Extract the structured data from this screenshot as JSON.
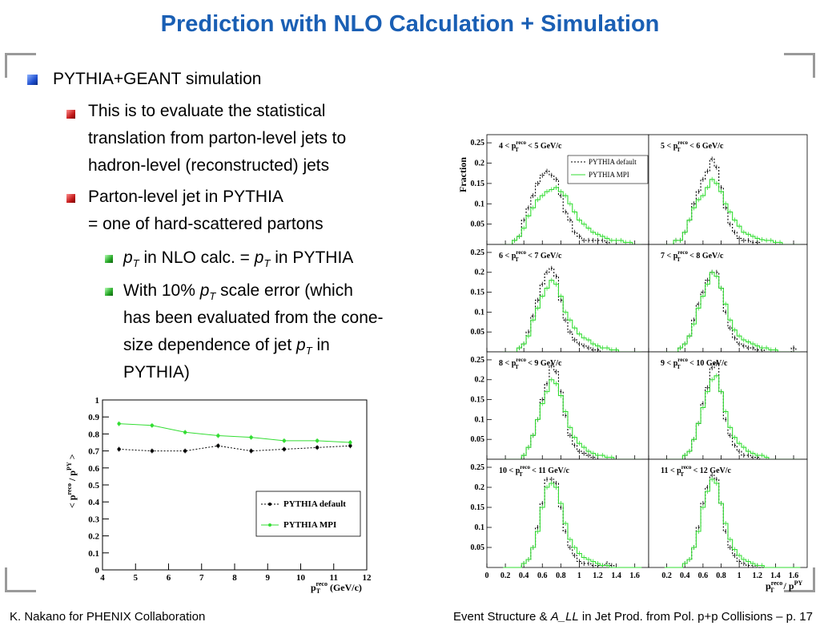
{
  "slide": {
    "title": "Prediction with NLO Calculation + Simulation",
    "bullets": {
      "b1": "PYTHIA+GEANT simulation",
      "b2_lines": [
        "This is to evaluate the statistical",
        "translation from parton-level jets to",
        "hadron-level (reconstructed) jets"
      ],
      "b3_lines": [
        "Parton-level jet in PYTHIA",
        "= one of hard-scattered partons"
      ],
      "b4": {
        "pre": "p",
        "sub": "T",
        "mid": " in NLO calc. = ",
        "pre2": "p",
        "sub2": "T",
        "post": " in PYTHIA"
      },
      "b5": {
        "line1a": "With 10% ",
        "p": "p",
        "sub": "T",
        "line1b": " scale error (which",
        "line2": "has been evaluated from the cone-",
        "line3a": "size dependence of jet ",
        "p3": "p",
        "sub3": "T",
        "line3b": " in",
        "line4": "PYTHIA)"
      }
    },
    "footer": {
      "left": "K. Nakano for PHENIX Collaboration",
      "right_pre": "Event Structure & ",
      "right_ital": "A_LL",
      "right_post": " in Jet Prod. from Pol. p+p Collisions – p. 17"
    }
  },
  "colors": {
    "title": "#1a5fb4",
    "mpi": "#33dd33",
    "default": "#000000"
  },
  "chart_data": [
    {
      "type": "line",
      "ylabel_main": "< p",
      "ylabel_sup1": "reco",
      "ylabel_mid": " / p",
      "ylabel_sup2": "PY",
      "ylabel_sub": "T",
      "ylabel_end": " >",
      "xlabel_main": "p",
      "xlabel_sub": "T",
      "xlabel_sup": "reco",
      "xlabel_unit": " (GeV/c)",
      "xlim": [
        4,
        12
      ],
      "ylim": [
        0,
        1
      ],
      "xticks": [
        4,
        5,
        6,
        7,
        8,
        9,
        10,
        11,
        12
      ],
      "yticks": [
        0,
        0.1,
        0.2,
        0.3,
        0.4,
        0.5,
        0.6,
        0.7,
        0.8,
        0.9,
        1
      ],
      "legend_position": "bottom-right",
      "x": [
        4.5,
        5.5,
        6.5,
        7.5,
        8.5,
        9.5,
        10.5,
        11.5
      ],
      "series": [
        {
          "name": "PYTHIA default",
          "values": [
            0.71,
            0.7,
            0.7,
            0.73,
            0.7,
            0.71,
            0.72,
            0.73
          ]
        },
        {
          "name": "PYTHIA MPI",
          "values": [
            0.86,
            0.85,
            0.81,
            0.79,
            0.78,
            0.76,
            0.76,
            0.75
          ]
        }
      ]
    },
    {
      "type": "bar",
      "ylabel": "Fraction",
      "xlabel_main": "p",
      "xlabel_sup1": "reco",
      "xlabel_sub": "T",
      "xlabel_mid": " / p",
      "xlabel_sup2": "PY",
      "ylim": [
        0,
        0.27
      ],
      "yticks": [
        0.05,
        0.1,
        0.15,
        0.2,
        0.25
      ],
      "xticks_left": [
        "0",
        "0.2",
        "0.4",
        "0.6",
        "0.8",
        "1",
        "1.2",
        "1.4",
        "1.6"
      ],
      "xticks_right": [
        "0.2",
        "0.4",
        "0.6",
        "0.8",
        "1",
        "1.2",
        "1.4",
        "1.6"
      ],
      "bins": [
        0.2,
        0.25,
        0.3,
        0.35,
        0.4,
        0.45,
        0.5,
        0.55,
        0.6,
        0.65,
        0.7,
        0.75,
        0.8,
        0.85,
        0.9,
        0.95,
        1.0,
        1.05,
        1.1,
        1.15,
        1.2,
        1.25,
        1.3,
        1.35,
        1.4,
        1.45,
        1.5,
        1.55,
        1.6,
        1.65
      ],
      "legend": [
        "PYTHIA default",
        "PYTHIA MPI"
      ],
      "panels": [
        {
          "label_pre": "4 < p",
          "label_post": " < 5 GeV/c",
          "default": [
            0,
            0,
            0.01,
            0.02,
            0.06,
            0.09,
            0.12,
            0.15,
            0.17,
            0.18,
            0.17,
            0.16,
            0.12,
            0.08,
            0.06,
            0.03,
            0.02,
            0.01,
            0.01,
            0.01,
            0.01,
            0.01,
            0.005,
            0,
            0,
            0,
            0,
            0,
            0,
            0
          ],
          "mpi": [
            0,
            0,
            0.01,
            0.02,
            0.04,
            0.07,
            0.09,
            0.11,
            0.12,
            0.13,
            0.135,
            0.14,
            0.13,
            0.12,
            0.1,
            0.08,
            0.06,
            0.05,
            0.04,
            0.03,
            0.025,
            0.02,
            0.015,
            0.01,
            0.01,
            0.01,
            0.005,
            0.005,
            0,
            0
          ]
        },
        {
          "label_pre": "5 < p",
          "label_post": " < 6 GeV/c",
          "default": [
            0,
            0,
            0.01,
            0.01,
            0.03,
            0.06,
            0.1,
            0.13,
            0.16,
            0.18,
            0.21,
            0.19,
            0.14,
            0.09,
            0.05,
            0.03,
            0.015,
            0.01,
            0.01,
            0.005,
            0.005,
            0,
            0,
            0,
            0,
            0,
            0,
            0,
            0,
            0
          ],
          "mpi": [
            0,
            0,
            0.01,
            0.01,
            0.03,
            0.06,
            0.09,
            0.11,
            0.12,
            0.14,
            0.16,
            0.15,
            0.13,
            0.1,
            0.08,
            0.06,
            0.045,
            0.03,
            0.025,
            0.02,
            0.015,
            0.012,
            0.01,
            0.01,
            0.005,
            0.005,
            0,
            0,
            0,
            0
          ]
        },
        {
          "label_pre": "6 < p",
          "label_post": " < 7 GeV/c",
          "default": [
            0,
            0,
            0,
            0.01,
            0.02,
            0.05,
            0.09,
            0.13,
            0.17,
            0.2,
            0.21,
            0.19,
            0.13,
            0.08,
            0.05,
            0.03,
            0.02,
            0.015,
            0.01,
            0.005,
            0.005,
            0,
            0,
            0,
            0,
            0,
            0,
            0,
            0,
            0
          ],
          "mpi": [
            0,
            0,
            0,
            0.01,
            0.02,
            0.04,
            0.08,
            0.11,
            0.14,
            0.16,
            0.18,
            0.17,
            0.14,
            0.1,
            0.08,
            0.06,
            0.045,
            0.035,
            0.03,
            0.02,
            0.015,
            0.01,
            0.01,
            0.005,
            0.005,
            0,
            0,
            0,
            0,
            0
          ]
        },
        {
          "label_pre": "7 < p",
          "label_post": " < 8 GeV/c",
          "default": [
            0,
            0,
            0,
            0.01,
            0.02,
            0.04,
            0.08,
            0.12,
            0.15,
            0.18,
            0.2,
            0.2,
            0.16,
            0.1,
            0.06,
            0.035,
            0.02,
            0.015,
            0.01,
            0.01,
            0.005,
            0.005,
            0,
            0,
            0,
            0,
            0,
            0,
            0.01,
            0
          ],
          "mpi": [
            0,
            0,
            0,
            0.01,
            0.02,
            0.04,
            0.07,
            0.11,
            0.14,
            0.17,
            0.2,
            0.19,
            0.16,
            0.12,
            0.08,
            0.055,
            0.04,
            0.03,
            0.025,
            0.02,
            0.015,
            0.01,
            0.01,
            0.005,
            0.005,
            0,
            0,
            0,
            0,
            0
          ]
        },
        {
          "label_pre": "8 < p",
          "label_post": " < 9 GeV/c",
          "default": [
            0,
            0,
            0,
            0,
            0.01,
            0.03,
            0.06,
            0.1,
            0.15,
            0.19,
            0.235,
            0.22,
            0.17,
            0.11,
            0.06,
            0.035,
            0.02,
            0.015,
            0.01,
            0.005,
            0,
            0,
            0,
            0,
            0,
            0,
            0,
            0,
            0,
            0
          ],
          "mpi": [
            0,
            0,
            0,
            0,
            0.01,
            0.03,
            0.06,
            0.1,
            0.14,
            0.17,
            0.2,
            0.19,
            0.16,
            0.12,
            0.08,
            0.055,
            0.04,
            0.03,
            0.02,
            0.015,
            0.01,
            0.01,
            0.005,
            0.005,
            0,
            0,
            0,
            0,
            0,
            0
          ]
        },
        {
          "label_pre": "9 < p",
          "label_post": " < 10 GeV/c",
          "default": [
            0,
            0,
            0,
            0,
            0.01,
            0.02,
            0.05,
            0.09,
            0.14,
            0.18,
            0.23,
            0.24,
            0.17,
            0.1,
            0.06,
            0.035,
            0.02,
            0.01,
            0.01,
            0.005,
            0.005,
            0,
            0,
            0,
            0,
            0,
            0,
            0,
            0,
            0
          ],
          "mpi": [
            0,
            0,
            0,
            0,
            0.01,
            0.02,
            0.05,
            0.09,
            0.13,
            0.17,
            0.2,
            0.21,
            0.17,
            0.12,
            0.08,
            0.055,
            0.04,
            0.03,
            0.02,
            0.015,
            0.01,
            0.01,
            0.005,
            0,
            0,
            0,
            0,
            0,
            0,
            0
          ]
        },
        {
          "label_pre": "10 < p",
          "label_post": " < 11 GeV/c",
          "default": [
            0,
            0,
            0,
            0,
            0.01,
            0.02,
            0.05,
            0.1,
            0.16,
            0.22,
            0.22,
            0.21,
            0.15,
            0.09,
            0.05,
            0.03,
            0.015,
            0.01,
            0.01,
            0.005,
            0.005,
            0.005,
            0.01,
            0.005,
            0,
            0,
            0,
            0,
            0,
            0
          ],
          "mpi": [
            0,
            0,
            0,
            0,
            0.01,
            0.02,
            0.05,
            0.09,
            0.15,
            0.2,
            0.21,
            0.2,
            0.16,
            0.11,
            0.07,
            0.05,
            0.035,
            0.025,
            0.02,
            0.015,
            0.01,
            0.005,
            0.005,
            0,
            0,
            0,
            0,
            0,
            0,
            0
          ]
        },
        {
          "label_pre": "11 < p",
          "label_post": " < 12 GeV/c",
          "default": [
            0,
            0,
            0,
            0,
            0.01,
            0.02,
            0.05,
            0.1,
            0.16,
            0.2,
            0.23,
            0.22,
            0.16,
            0.09,
            0.05,
            0.03,
            0.015,
            0.01,
            0.005,
            0.005,
            0,
            0,
            0,
            0,
            0,
            0,
            0,
            0,
            0,
            0
          ],
          "mpi": [
            0,
            0,
            0,
            0,
            0.01,
            0.02,
            0.05,
            0.09,
            0.15,
            0.19,
            0.22,
            0.21,
            0.16,
            0.11,
            0.07,
            0.045,
            0.03,
            0.02,
            0.015,
            0.01,
            0.005,
            0.005,
            0,
            0,
            0,
            0,
            0,
            0,
            0,
            0
          ]
        }
      ]
    }
  ]
}
